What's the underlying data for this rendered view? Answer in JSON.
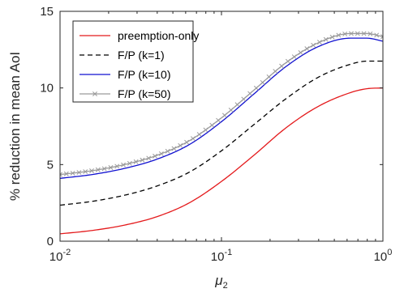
{
  "chart_data": {
    "type": "line",
    "xscale": "log",
    "xlim": [
      0.01,
      1
    ],
    "ylim": [
      0,
      15
    ],
    "xlabel": "μ2",
    "ylabel": "% reduction in mean AoI",
    "grid": false,
    "legend_position": "top-left",
    "x_ticks": [
      {
        "value": 0.01,
        "base": "10",
        "exp": "-2"
      },
      {
        "value": 0.1,
        "base": "10",
        "exp": "-1"
      },
      {
        "value": 1,
        "base": "10",
        "exp": "0"
      }
    ],
    "y_ticks": [
      {
        "value": 0,
        "label": "0"
      },
      {
        "value": 5,
        "label": "5"
      },
      {
        "value": 10,
        "label": "10"
      },
      {
        "value": 15,
        "label": "15"
      }
    ],
    "x": [
      0.01,
      0.0158,
      0.0251,
      0.0398,
      0.0631,
      0.1,
      0.1585,
      0.2512,
      0.3981,
      0.631,
      0.7943,
      1.0
    ],
    "series": [
      {
        "name": "preemption-only",
        "color": "#e41a1c",
        "dash": "none",
        "marker": "none",
        "values": [
          0.48,
          0.7,
          1.05,
          1.6,
          2.5,
          3.9,
          5.6,
          7.4,
          8.8,
          9.7,
          9.95,
          10.0
        ]
      },
      {
        "name": "F/P (k=1)",
        "color": "#000000",
        "dash": "6,4",
        "marker": "none",
        "values": [
          2.35,
          2.6,
          3.0,
          3.6,
          4.5,
          5.9,
          7.6,
          9.3,
          10.7,
          11.55,
          11.75,
          11.75
        ]
      },
      {
        "name": "F/P (k=10)",
        "color": "#1010d0",
        "dash": "none",
        "marker": "none",
        "values": [
          4.1,
          4.35,
          4.75,
          5.35,
          6.3,
          7.8,
          9.6,
          11.4,
          12.7,
          13.25,
          13.25,
          13.05
        ]
      },
      {
        "name": "F/P (k=50)",
        "color": "#9a9a9a",
        "dash": "none",
        "marker": "x",
        "values": [
          4.35,
          4.6,
          5.0,
          5.6,
          6.55,
          8.05,
          9.85,
          11.65,
          12.95,
          13.55,
          13.55,
          13.35
        ]
      }
    ]
  }
}
